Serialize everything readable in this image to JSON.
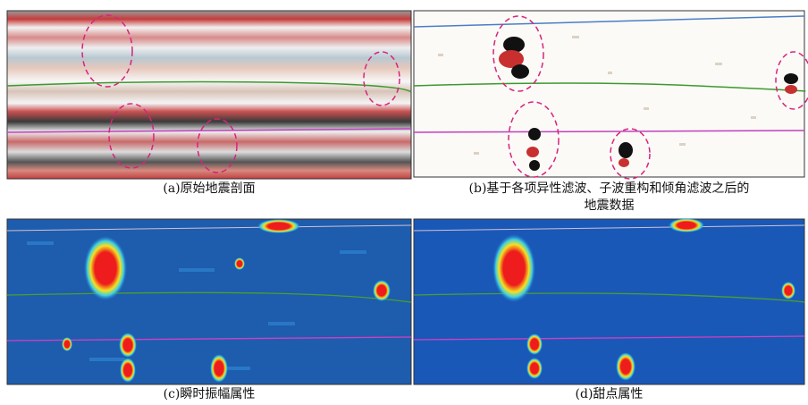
{
  "figure": {
    "panels": [
      {
        "caption_lines": [
          "(a)原始地震剖面"
        ]
      },
      {
        "caption_lines": [
          "(b)基于各项异性滤波、子波重构和倾角滤波之后的",
          "地震数据"
        ]
      },
      {
        "caption_lines": [
          "(c)瞬时振幅属性"
        ]
      },
      {
        "caption_lines": [
          "(d)甜点属性"
        ]
      }
    ]
  }
}
